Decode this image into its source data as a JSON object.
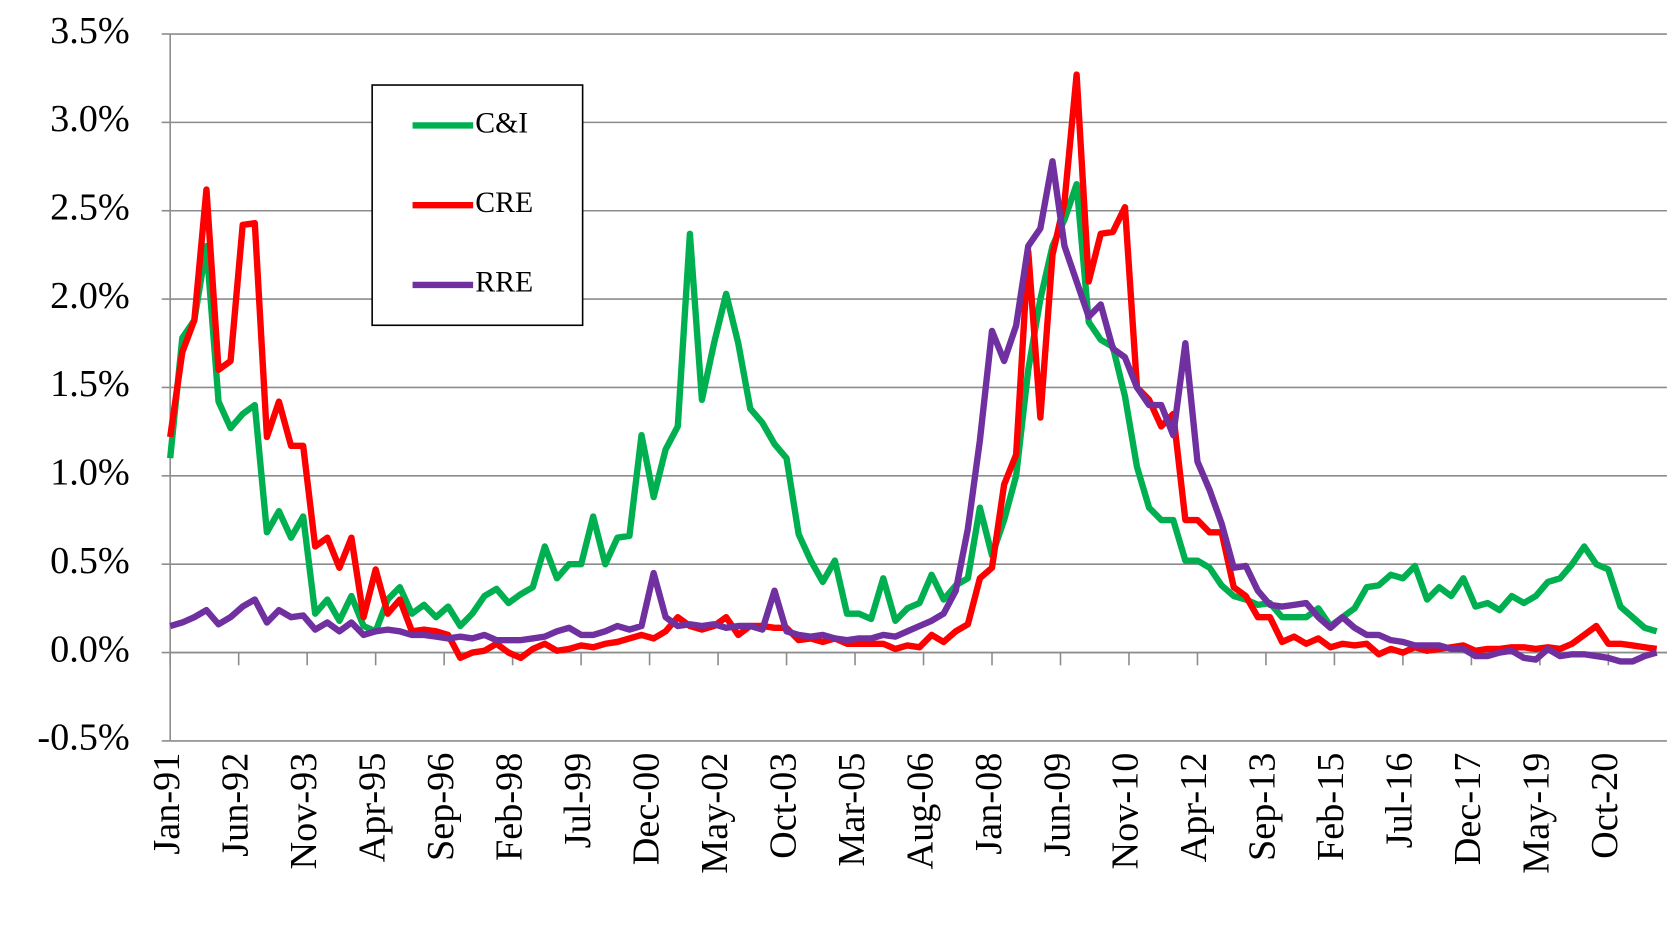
{
  "chart_data": {
    "type": "line",
    "legend": "upper left",
    "grid": true,
    "ylim": [
      -0.5,
      3.5
    ],
    "yticks": [
      {
        "value": -0.5,
        "label": "-0.5%"
      },
      {
        "value": 0,
        "label": "0.0%"
      },
      {
        "value": 0.5,
        "label": "0.5%"
      },
      {
        "value": 1,
        "label": "1.0%"
      },
      {
        "value": 1.5,
        "label": "1.5%"
      },
      {
        "value": 2,
        "label": "2.0%"
      },
      {
        "value": 2.5,
        "label": "2.5%"
      },
      {
        "value": 3,
        "label": "3.0%"
      },
      {
        "value": 3.5,
        "label": "3.5%"
      }
    ],
    "xlim": [
      "1991-01",
      "2021-12"
    ],
    "xticks": [
      {
        "value": "1991-01",
        "label": "Jan-91"
      },
      {
        "value": "1992-06",
        "label": "Jun-92"
      },
      {
        "value": "1993-11",
        "label": "Nov-93"
      },
      {
        "value": "1995-04",
        "label": "Apr-95"
      },
      {
        "value": "1996-09",
        "label": "Sep-96"
      },
      {
        "value": "1998-02",
        "label": "Feb-98"
      },
      {
        "value": "1999-07",
        "label": "Jul-99"
      },
      {
        "value": "2000-12",
        "label": "Dec-00"
      },
      {
        "value": "2002-05",
        "label": "May-02"
      },
      {
        "value": "2003-10",
        "label": "Oct-03"
      },
      {
        "value": "2005-03",
        "label": "Mar-05"
      },
      {
        "value": "2006-08",
        "label": "Aug-06"
      },
      {
        "value": "2008-01",
        "label": "Jan-08"
      },
      {
        "value": "2009-06",
        "label": "Jun-09"
      },
      {
        "value": "2010-11",
        "label": "Nov-10"
      },
      {
        "value": "2012-04",
        "label": "Apr-12"
      },
      {
        "value": "2013-09",
        "label": "Sep-13"
      },
      {
        "value": "2015-02",
        "label": "Feb-15"
      },
      {
        "value": "2016-07",
        "label": "Jul-16"
      },
      {
        "value": "2017-12",
        "label": "Dec-17"
      },
      {
        "value": "2019-05",
        "label": "May-19"
      },
      {
        "value": "2020-10",
        "label": "Oct-20"
      }
    ],
    "x": [
      "1991-01",
      "1991-04",
      "1991-07",
      "1991-10",
      "1992-01",
      "1992-04",
      "1992-07",
      "1992-10",
      "1993-01",
      "1993-04",
      "1993-07",
      "1993-10",
      "1994-01",
      "1994-04",
      "1994-07",
      "1994-10",
      "1995-01",
      "1995-04",
      "1995-07",
      "1995-10",
      "1996-01",
      "1996-04",
      "1996-07",
      "1996-10",
      "1997-01",
      "1997-04",
      "1997-07",
      "1997-10",
      "1998-01",
      "1998-04",
      "1998-07",
      "1998-10",
      "1999-01",
      "1999-04",
      "1999-07",
      "1999-10",
      "2000-01",
      "2000-04",
      "2000-07",
      "2000-10",
      "2001-01",
      "2001-04",
      "2001-07",
      "2001-10",
      "2002-01",
      "2002-04",
      "2002-07",
      "2002-10",
      "2003-01",
      "2003-04",
      "2003-07",
      "2003-10",
      "2004-01",
      "2004-04",
      "2004-07",
      "2004-10",
      "2005-01",
      "2005-04",
      "2005-07",
      "2005-10",
      "2006-01",
      "2006-04",
      "2006-07",
      "2006-10",
      "2007-01",
      "2007-04",
      "2007-07",
      "2007-10",
      "2008-01",
      "2008-04",
      "2008-07",
      "2008-10",
      "2009-01",
      "2009-04",
      "2009-07",
      "2009-10",
      "2010-01",
      "2010-04",
      "2010-07",
      "2010-10",
      "2011-01",
      "2011-04",
      "2011-07",
      "2011-10",
      "2012-01",
      "2012-04",
      "2012-07",
      "2012-10",
      "2013-01",
      "2013-04",
      "2013-07",
      "2013-10",
      "2014-01",
      "2014-04",
      "2014-07",
      "2014-10",
      "2015-01",
      "2015-04",
      "2015-07",
      "2015-10",
      "2016-01",
      "2016-04",
      "2016-07",
      "2016-10",
      "2017-01",
      "2017-04",
      "2017-07",
      "2017-10",
      "2018-01",
      "2018-04",
      "2018-07",
      "2018-10",
      "2019-01",
      "2019-04",
      "2019-07",
      "2019-10",
      "2020-01",
      "2020-04",
      "2020-07",
      "2020-10",
      "2021-01",
      "2021-04",
      "2021-07",
      "2021-10"
    ],
    "series": [
      {
        "name": "C&I",
        "color": "#00b050",
        "values": [
          1.1,
          1.78,
          1.88,
          2.3,
          1.42,
          1.27,
          1.35,
          1.4,
          0.68,
          0.8,
          0.65,
          0.77,
          0.22,
          0.3,
          0.18,
          0.32,
          0.15,
          0.12,
          0.3,
          0.37,
          0.22,
          0.27,
          0.2,
          0.26,
          0.15,
          0.22,
          0.32,
          0.36,
          0.28,
          0.33,
          0.37,
          0.6,
          0.42,
          0.5,
          0.5,
          0.77,
          0.5,
          0.65,
          0.66,
          1.23,
          0.88,
          1.15,
          1.28,
          2.37,
          1.43,
          1.75,
          2.03,
          1.75,
          1.38,
          1.3,
          1.18,
          1.1,
          0.67,
          0.52,
          0.4,
          0.52,
          0.22,
          0.22,
          0.19,
          0.42,
          0.18,
          0.25,
          0.28,
          0.44,
          0.3,
          0.38,
          0.42,
          0.82,
          0.55,
          0.75,
          1.0,
          1.6,
          2.0,
          2.3,
          2.45,
          2.65,
          1.87,
          1.77,
          1.73,
          1.45,
          1.05,
          0.82,
          0.75,
          0.75,
          0.52,
          0.52,
          0.48,
          0.38,
          0.32,
          0.3,
          0.27,
          0.28,
          0.2,
          0.2,
          0.2,
          0.25,
          0.15,
          0.2,
          0.25,
          0.37,
          0.38,
          0.44,
          0.42,
          0.49,
          0.3,
          0.37,
          0.32,
          0.42,
          0.26,
          0.28,
          0.24,
          0.32,
          0.28,
          0.32,
          0.4,
          0.42,
          0.5,
          0.6,
          0.5,
          0.47,
          0.26,
          0.2,
          0.14,
          0.12
        ]
      },
      {
        "name": "CRE",
        "color": "#ff0000",
        "values": [
          1.22,
          1.7,
          1.88,
          2.62,
          1.6,
          1.65,
          2.42,
          2.43,
          1.22,
          1.42,
          1.17,
          1.17,
          0.6,
          0.65,
          0.48,
          0.65,
          0.2,
          0.47,
          0.22,
          0.3,
          0.12,
          0.13,
          0.12,
          0.1,
          -0.03,
          0,
          0.01,
          0.05,
          0,
          -0.03,
          0.02,
          0.05,
          0.01,
          0.02,
          0.04,
          0.03,
          0.05,
          0.06,
          0.08,
          0.1,
          0.08,
          0.12,
          0.2,
          0.15,
          0.13,
          0.15,
          0.2,
          0.1,
          0.15,
          0.15,
          0.14,
          0.14,
          0.07,
          0.08,
          0.06,
          0.08,
          0.05,
          0.05,
          0.05,
          0.05,
          0.02,
          0.04,
          0.03,
          0.1,
          0.06,
          0.12,
          0.16,
          0.42,
          0.48,
          0.95,
          1.12,
          2.27,
          1.33,
          2.25,
          2.55,
          3.27,
          2.1,
          2.37,
          2.38,
          2.52,
          1.5,
          1.43,
          1.28,
          1.35,
          0.75,
          0.75,
          0.68,
          0.68,
          0.37,
          0.32,
          0.2,
          0.2,
          0.06,
          0.09,
          0.05,
          0.08,
          0.03,
          0.05,
          0.04,
          0.05,
          -0.01,
          0.02,
          0,
          0.03,
          0.01,
          0.02,
          0.03,
          0.04,
          0.01,
          0.02,
          0.02,
          0.03,
          0.03,
          0.02,
          0.03,
          0.02,
          0.05,
          0.1,
          0.15,
          0.05,
          0.05,
          0.04,
          0.03,
          0.02
        ]
      },
      {
        "name": "RRE",
        "color": "#7030a0",
        "values": [
          0.15,
          0.17,
          0.2,
          0.24,
          0.16,
          0.2,
          0.26,
          0.3,
          0.17,
          0.24,
          0.2,
          0.21,
          0.13,
          0.17,
          0.12,
          0.17,
          0.1,
          0.12,
          0.13,
          0.12,
          0.1,
          0.1,
          0.09,
          0.08,
          0.09,
          0.08,
          0.1,
          0.07,
          0.07,
          0.07,
          0.08,
          0.09,
          0.12,
          0.14,
          0.1,
          0.1,
          0.12,
          0.15,
          0.13,
          0.15,
          0.45,
          0.2,
          0.15,
          0.16,
          0.15,
          0.16,
          0.14,
          0.15,
          0.15,
          0.13,
          0.35,
          0.12,
          0.1,
          0.09,
          0.1,
          0.08,
          0.07,
          0.08,
          0.08,
          0.1,
          0.09,
          0.12,
          0.15,
          0.18,
          0.22,
          0.35,
          0.7,
          1.2,
          1.82,
          1.65,
          1.85,
          2.3,
          2.4,
          2.78,
          2.3,
          2.1,
          1.9,
          1.97,
          1.72,
          1.67,
          1.5,
          1.4,
          1.4,
          1.23,
          1.75,
          1.08,
          0.92,
          0.73,
          0.48,
          0.49,
          0.35,
          0.27,
          0.26,
          0.27,
          0.28,
          0.2,
          0.14,
          0.2,
          0.14,
          0.1,
          0.1,
          0.07,
          0.06,
          0.04,
          0.04,
          0.04,
          0.02,
          0.02,
          -0.02,
          -0.02,
          0,
          0.01,
          -0.03,
          -0.04,
          0.02,
          -0.02,
          -0.01,
          -0.01,
          -0.02,
          -0.03,
          -0.05,
          -0.05,
          -0.02,
          0
        ]
      }
    ]
  }
}
